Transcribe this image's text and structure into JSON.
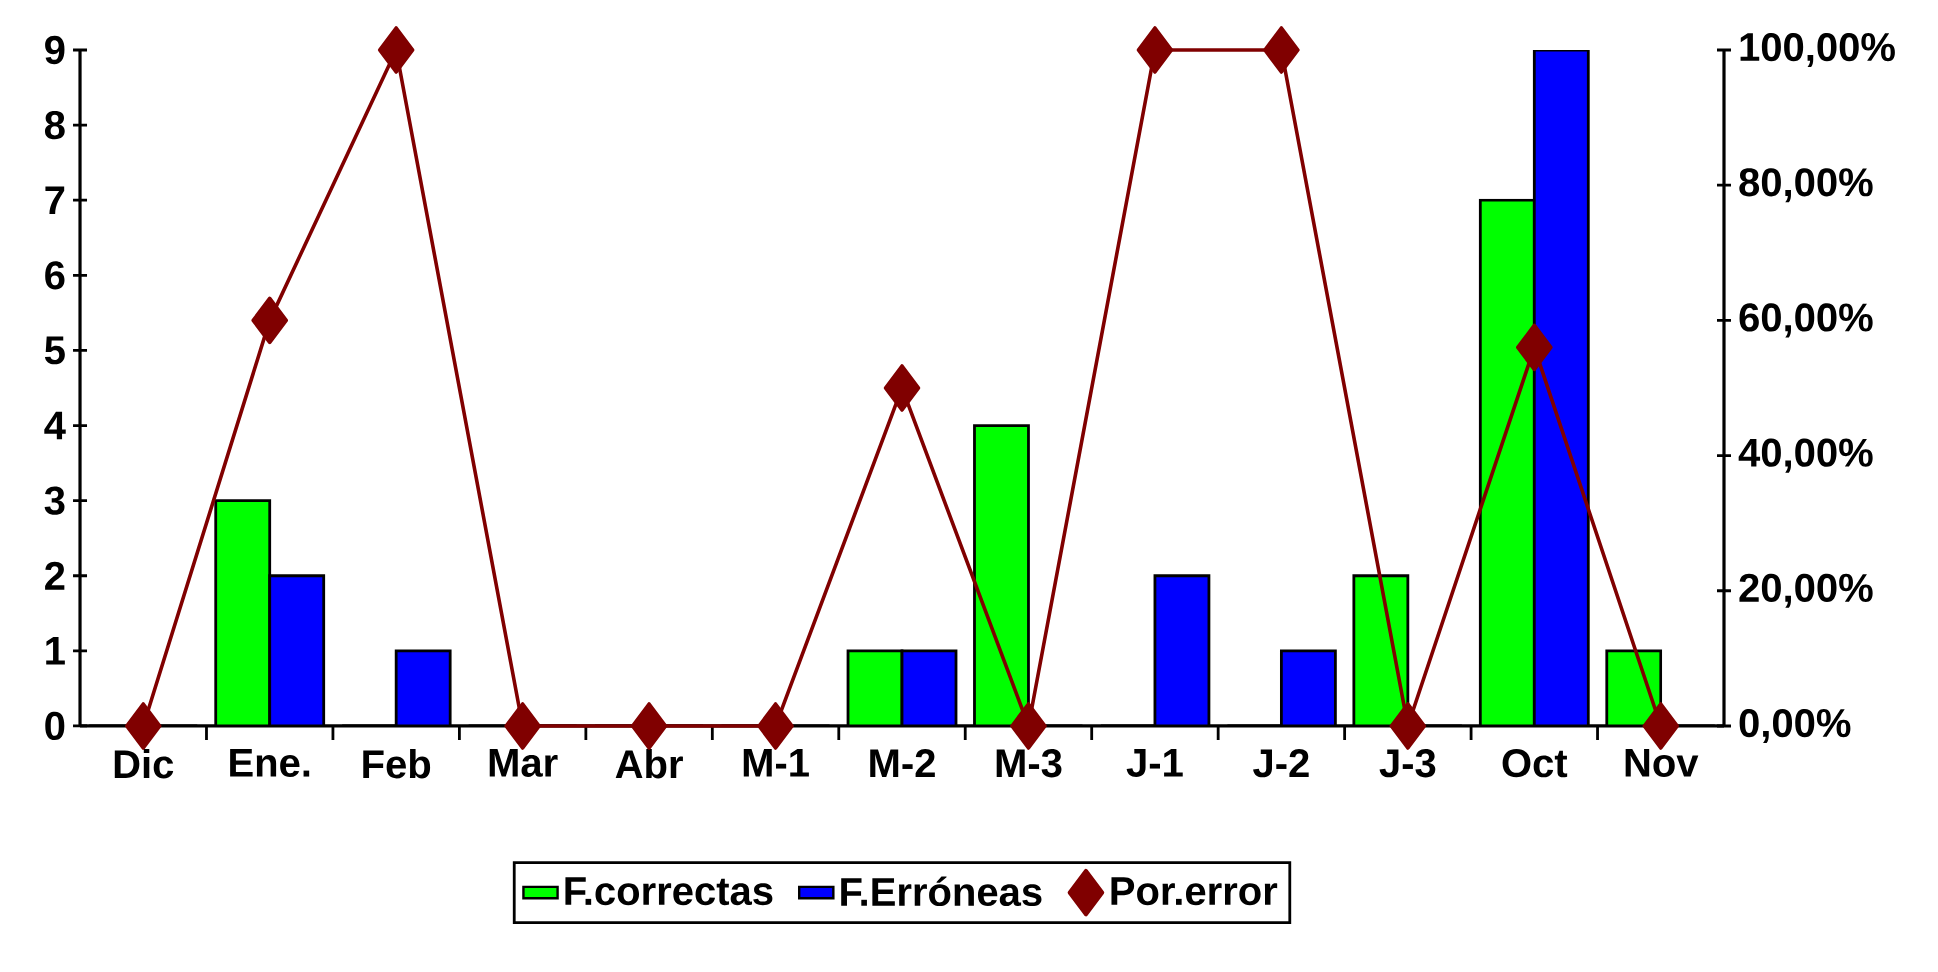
{
  "chart_data": {
    "type": "bar",
    "categories": [
      "Dic",
      "Ene.",
      "Feb",
      "Mar",
      "Abr",
      "M-1",
      "M-2",
      "M-3",
      "J-1",
      "J-2",
      "J-3",
      "Oct",
      "Nov"
    ],
    "series": [
      {
        "name": "F.correctas",
        "color": "#00ff00",
        "values": [
          0,
          3,
          0,
          0,
          0,
          0,
          1,
          4,
          0,
          0,
          2,
          7,
          1
        ]
      },
      {
        "name": "F.Erróneas",
        "color": "#0000ff",
        "values": [
          0,
          2,
          1,
          0,
          0,
          0,
          1,
          0,
          2,
          1,
          0,
          9,
          0
        ]
      },
      {
        "name": "Por.error",
        "type": "line",
        "axis": "y2",
        "color": "#800000",
        "marker": "diamond",
        "line_style": "solid",
        "values": [
          0,
          60,
          100,
          0,
          0,
          0,
          50,
          0,
          100,
          100,
          0,
          56,
          0
        ]
      }
    ],
    "ylim": [
      0,
      9
    ],
    "yticks": [
      0,
      1,
      2,
      3,
      4,
      5,
      6,
      7,
      8,
      9
    ],
    "y2lim": [
      0,
      100
    ],
    "y2ticks": [
      {
        "value": 0,
        "label": "0,00%"
      },
      {
        "value": 20,
        "label": "20,00%"
      },
      {
        "value": 40,
        "label": "40,00%"
      },
      {
        "value": 60,
        "label": "60,00%"
      },
      {
        "value": 80,
        "label": "80,00%"
      },
      {
        "value": 100,
        "label": "100,00%"
      }
    ],
    "legend": "bottom"
  }
}
